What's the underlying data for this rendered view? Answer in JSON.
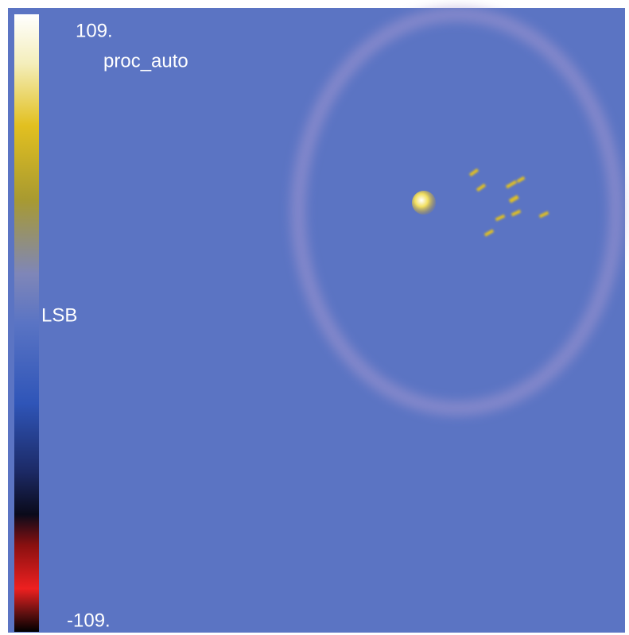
{
  "caption": "proc_auto",
  "colorbar": {
    "top_label": "109.",
    "bottom_label": "-109.",
    "unit": "LSB"
  }
}
